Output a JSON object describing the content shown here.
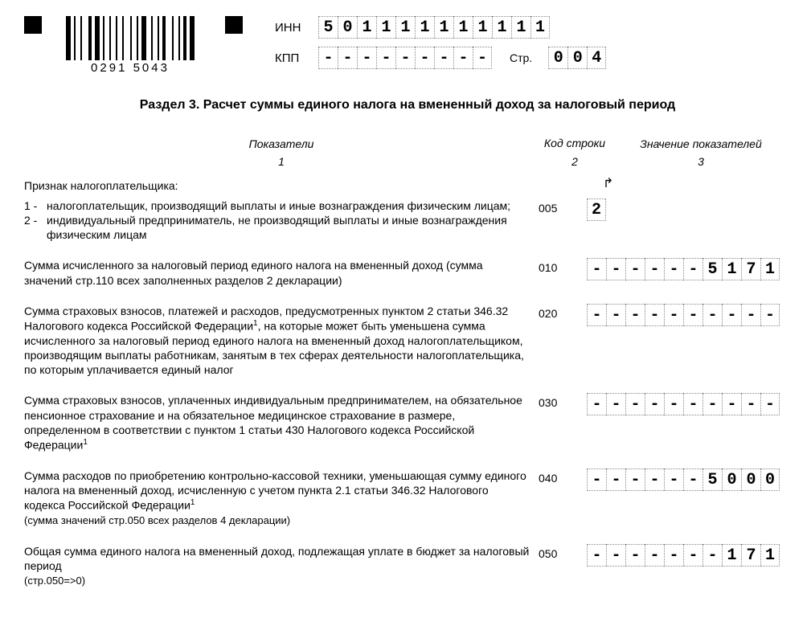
{
  "header": {
    "inn_label": "ИНН",
    "kpp_label": "КПП",
    "page_label": "Стр.",
    "barcode_text": "0291  5043",
    "inn": [
      "5",
      "0",
      "1",
      "1",
      "1",
      "1",
      "1",
      "1",
      "1",
      "1",
      "1",
      "1"
    ],
    "kpp": [
      "-",
      "-",
      "-",
      "-",
      "-",
      "-",
      "-",
      "-",
      "-"
    ],
    "page": [
      "0",
      "0",
      "4"
    ]
  },
  "section_title": "Раздел 3. Расчет суммы единого налога на вмененный доход за налоговый период",
  "columns": {
    "h1": "Показатели",
    "h2": "Код строки",
    "h3": "Значение показателей",
    "n1": "1",
    "n2": "2",
    "n3": "3"
  },
  "rows": {
    "r005": {
      "heading": "Признак налогоплательщика:",
      "items": [
        {
          "num": "1 -",
          "text": "налогоплательщик, производящий выплаты и иные вознаграждения физическим лицам;"
        },
        {
          "num": "2 -",
          "text": "индивидуальный предприниматель, не производящий выплаты и иные вознаграждения физическим лицам"
        }
      ],
      "code": "005",
      "value": [
        "2"
      ]
    },
    "r010": {
      "text": "Сумма исчисленного за налоговый период единого налога на вмененный доход (сумма значений стр.110 всех заполненных разделов 2 декларации)",
      "code": "010",
      "value": [
        "-",
        "-",
        "-",
        "-",
        "-",
        "-",
        "5",
        "1",
        "7",
        "1"
      ]
    },
    "r020": {
      "text_a": "Сумма страховых взносов, платежей и расходов, предусмотренных пунктом 2 статьи 346.32 Налогового кодекса Российской Федерации",
      "text_b": ", на которые может быть уменьшена сумма исчисленного за налоговый период единого налога на вмененный доход налогоплательщиком, производящим выплаты работникам, занятым в тех сферах деятельности налогоплательщика, по которым уплачивается единый налог",
      "code": "020",
      "value": [
        "-",
        "-",
        "-",
        "-",
        "-",
        "-",
        "-",
        "-",
        "-",
        "-"
      ]
    },
    "r030": {
      "text_a": "Сумма страховых взносов, уплаченных индивидуальным предпринимателем, на обязательное пенсионное страхование и на обязательное медицинское страхование в размере, определенном в соответствии с пунктом 1 статьи 430 Налогового кодекса Российской Федерации",
      "code": "030",
      "value": [
        "-",
        "-",
        "-",
        "-",
        "-",
        "-",
        "-",
        "-",
        "-",
        "-"
      ]
    },
    "r040": {
      "text_a": "Сумма расходов по приобретению контрольно-кассовой техники, уменьшающая сумму единого налога на вмененный доход, исчисленную с учетом пункта 2.1 статьи 346.32 Налогового кодекса Российской Федерации",
      "note": "(сумма значений стр.050 всех разделов 4 декларации)",
      "code": "040",
      "value": [
        "-",
        "-",
        "-",
        "-",
        "-",
        "-",
        "5",
        "0",
        "0",
        "0"
      ]
    },
    "r050": {
      "text": "Общая сумма единого налога на вмененный доход, подлежащая уплате в бюджет за налоговый период",
      "note": "(стр.050=>0)",
      "code": "050",
      "value": [
        "-",
        "-",
        "-",
        "-",
        "-",
        "-",
        "-",
        "1",
        "7",
        "1"
      ]
    }
  },
  "barcode_widths": [
    3,
    1,
    1,
    2,
    1,
    3,
    2,
    1,
    3,
    1,
    1,
    2,
    1,
    2,
    1,
    2,
    1,
    3,
    1,
    2,
    1,
    1,
    3,
    2,
    1,
    2,
    1,
    1,
    2,
    3,
    1,
    2,
    1,
    1,
    2,
    1,
    3
  ]
}
